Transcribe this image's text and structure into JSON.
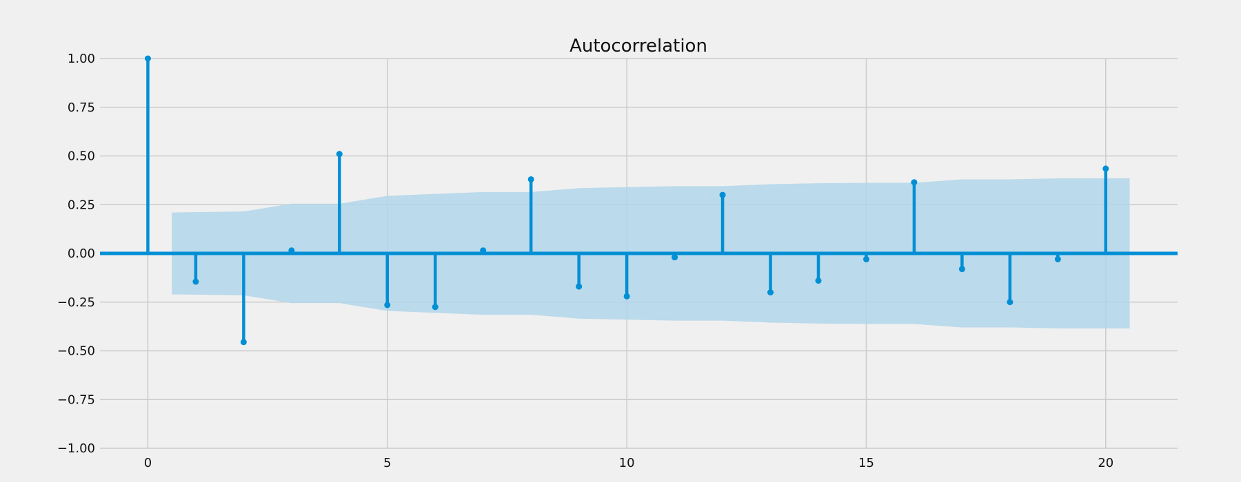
{
  "chart_data": {
    "type": "stem",
    "title": "Autocorrelation",
    "xlabel": "",
    "ylabel": "",
    "xlim": [
      -1.0,
      21.5
    ],
    "ylim": [
      -1.0,
      1.0
    ],
    "x_ticks": [
      0,
      5,
      10,
      15,
      20
    ],
    "x_tick_labels": [
      "0",
      "5",
      "10",
      "15",
      "20"
    ],
    "y_ticks": [
      1.0,
      0.75,
      0.5,
      0.25,
      0.0,
      -0.25,
      -0.5,
      -0.75,
      -1.0
    ],
    "y_tick_labels": [
      "1.00",
      "0.75",
      "0.50",
      "0.25",
      "0.00",
      "−0.25",
      "−0.50",
      "−0.75",
      "−1.00"
    ],
    "grid": true,
    "series": [
      {
        "lags": [
          0,
          1,
          2,
          3,
          4,
          5,
          6,
          7,
          8,
          9,
          10,
          11,
          12,
          13,
          14,
          15,
          16,
          17,
          18,
          19,
          20
        ],
        "values": [
          1.0,
          -0.145,
          -0.455,
          0.015,
          0.51,
          -0.265,
          -0.275,
          0.015,
          0.38,
          -0.17,
          -0.22,
          -0.02,
          0.3,
          -0.2,
          -0.14,
          -0.03,
          0.365,
          -0.08,
          -0.25,
          -0.03,
          0.435
        ]
      }
    ],
    "confidence_band": {
      "lags": [
        0.5,
        2,
        3,
        4,
        5,
        6,
        7,
        8,
        9,
        10,
        11,
        12,
        13,
        14,
        15,
        16,
        17,
        18,
        19,
        20.5
      ],
      "upper": [
        0.21,
        0.215,
        0.255,
        0.255,
        0.295,
        0.305,
        0.315,
        0.315,
        0.335,
        0.34,
        0.345,
        0.345,
        0.355,
        0.36,
        0.362,
        0.362,
        0.38,
        0.38,
        0.385,
        0.385
      ]
    },
    "colors": {
      "stem": "#008fd5",
      "band": "#b2d6ea",
      "grid": "#cbcbcb",
      "background": "#f0f0f0"
    }
  }
}
